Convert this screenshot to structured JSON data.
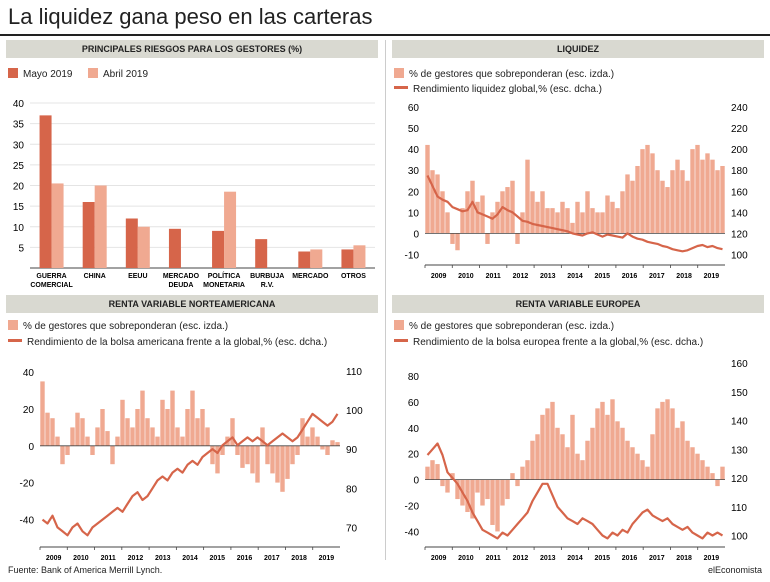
{
  "title": "La liquidez gana peso en las carteras",
  "footer": {
    "source": "Fuente: Bank of America Merrill Lynch.",
    "brand": "elEconomista"
  },
  "colors": {
    "dark": "#d6654a",
    "light": "#f0a991",
    "header_bg": "#d9d9d1"
  },
  "chart_data": [
    {
      "type": "bar",
      "title": "PRINCIPALES RIESGOS PARA LOS GESTORES (%)",
      "categories": [
        "GUERRA COMERCIAL",
        "CHINA",
        "EEUU",
        "MERCADO DEUDA",
        "POLÍTICA MONETARIA",
        "BURBUJA R.V.",
        "MERCADO",
        "OTROS"
      ],
      "series": [
        {
          "name": "Mayo 2019",
          "values": [
            37,
            16,
            12,
            9.5,
            9,
            7,
            4,
            4.5
          ]
        },
        {
          "name": "Abril 2019",
          "values": [
            20.5,
            20,
            10,
            0,
            18.5,
            0,
            4.5,
            5.5
          ]
        }
      ],
      "yticks": [
        5,
        10,
        15,
        20,
        25,
        30,
        35,
        40
      ],
      "ylim": [
        0,
        40
      ]
    },
    {
      "type": "bar+line",
      "title": "LIQUIDEZ",
      "bar_series": "% de gestores que sobreponderan (esc. izda.)",
      "line_series": "Rendimiento liquidez global,% (esc. dcha.)",
      "x": [
        "2009",
        "2010",
        "2011",
        "2012",
        "2013",
        "2014",
        "2015",
        "2016",
        "2017",
        "2018",
        "2019"
      ],
      "yleft_ticks": [
        -10,
        0,
        10,
        20,
        30,
        40,
        50,
        60
      ],
      "yleft": [
        -15,
        60
      ],
      "yright_ticks": [
        100,
        120,
        140,
        160,
        180,
        200,
        220,
        240
      ],
      "yright": [
        90,
        240
      ],
      "bars": [
        42,
        30,
        28,
        20,
        10,
        -5,
        -8,
        12,
        20,
        25,
        15,
        18,
        -5,
        10,
        15,
        20,
        22,
        25,
        -5,
        10,
        35,
        20,
        15,
        20,
        12,
        12,
        10,
        15,
        12,
        5,
        15,
        10,
        20,
        12,
        10,
        10,
        18,
        15,
        12,
        20,
        28,
        25,
        32,
        40,
        42,
        38,
        30,
        25,
        22,
        30,
        35,
        30,
        25,
        40,
        42,
        35,
        38,
        35,
        30,
        32
      ],
      "line": [
        175,
        165,
        155,
        152,
        150,
        145,
        143,
        141,
        142,
        150,
        140,
        138,
        136,
        134,
        138,
        145,
        142,
        140,
        136,
        132,
        131,
        129,
        128,
        127,
        126,
        125,
        124,
        123,
        122,
        120,
        119,
        118,
        120,
        121,
        119,
        117,
        119,
        118,
        117,
        116,
        120,
        117,
        115,
        114,
        112,
        111,
        110,
        108,
        107,
        105,
        104,
        103,
        104,
        106,
        108,
        109,
        107,
        108,
        106,
        105
      ]
    },
    {
      "type": "bar+line",
      "title": "RENTA VARIABLE NORTEAMERICANA",
      "bar_series": "% de gestores que sobreponderan (esc. izda.)",
      "line_series": "Rendimiento de la bolsa americana frente a la global,% (esc. dcha.)",
      "x": [
        "2009",
        "2010",
        "2011",
        "2012",
        "2013",
        "2014",
        "2015",
        "2016",
        "2017",
        "2018",
        "2019"
      ],
      "yleft_ticks": [
        -40,
        -20,
        0,
        20,
        40
      ],
      "yleft": [
        -55,
        45
      ],
      "yright_ticks": [
        70,
        80,
        90,
        100,
        110
      ],
      "yright": [
        65,
        112
      ],
      "bars": [
        35,
        18,
        15,
        5,
        -10,
        -5,
        10,
        18,
        15,
        5,
        -5,
        10,
        20,
        8,
        -10,
        5,
        25,
        15,
        10,
        20,
        30,
        15,
        10,
        5,
        25,
        20,
        30,
        10,
        5,
        20,
        30,
        15,
        20,
        10,
        -10,
        -15,
        -5,
        5,
        15,
        -5,
        -12,
        -10,
        -15,
        -20,
        10,
        -10,
        -15,
        -20,
        -25,
        -18,
        -10,
        -5,
        15,
        5,
        10,
        5,
        -2,
        -5,
        3,
        2
      ],
      "line": [
        72,
        71,
        73,
        70,
        69,
        68,
        70,
        71,
        69,
        68,
        70,
        71,
        72,
        73,
        74,
        75,
        74,
        76,
        78,
        79,
        77,
        78,
        80,
        82,
        83,
        82,
        84,
        85,
        84,
        86,
        87,
        86,
        88,
        89,
        90,
        89,
        91,
        92,
        93,
        91,
        92,
        93,
        92,
        93,
        92,
        91,
        92,
        93,
        94,
        93,
        92,
        93,
        95,
        97,
        99,
        98,
        97,
        96,
        97,
        99
      ]
    },
    {
      "type": "bar+line",
      "title": "RENTA VARIABLE EUROPEA",
      "bar_series": "% de gestores que sobreponderan (esc. izda.)",
      "line_series": "Rendimiento de la bolsa europea frente a la global,% (esc. dcha.)",
      "x": [
        "2009",
        "2010",
        "2011",
        "2012",
        "2013",
        "2014",
        "2015",
        "2016",
        "2017",
        "2018",
        "2019"
      ],
      "yleft_ticks": [
        -40,
        -20,
        0,
        20,
        40,
        60,
        80
      ],
      "yleft": [
        -52,
        90
      ],
      "yright_ticks": [
        100,
        110,
        120,
        130,
        140,
        150,
        160
      ],
      "yright": [
        96,
        160
      ],
      "bars": [
        10,
        15,
        12,
        -5,
        -10,
        5,
        -15,
        -20,
        -25,
        -30,
        -10,
        -20,
        -15,
        -35,
        -40,
        -20,
        -15,
        5,
        -5,
        10,
        15,
        30,
        35,
        50,
        55,
        60,
        40,
        35,
        25,
        50,
        20,
        15,
        30,
        40,
        55,
        60,
        50,
        62,
        45,
        40,
        30,
        25,
        20,
        15,
        10,
        35,
        55,
        60,
        62,
        55,
        40,
        45,
        30,
        25,
        20,
        15,
        10,
        5,
        -5,
        10
      ],
      "line": [
        128,
        130,
        132,
        128,
        122,
        120,
        118,
        115,
        112,
        108,
        105,
        102,
        101,
        100,
        99,
        101,
        100,
        102,
        104,
        106,
        108,
        112,
        115,
        118,
        118,
        114,
        110,
        108,
        106,
        105,
        104,
        106,
        105,
        104,
        102,
        100,
        99,
        101,
        100,
        102,
        101,
        104,
        106,
        108,
        109,
        107,
        106,
        105,
        106,
        104,
        103,
        102,
        103,
        101,
        100,
        99,
        101,
        100,
        101,
        100
      ]
    }
  ]
}
